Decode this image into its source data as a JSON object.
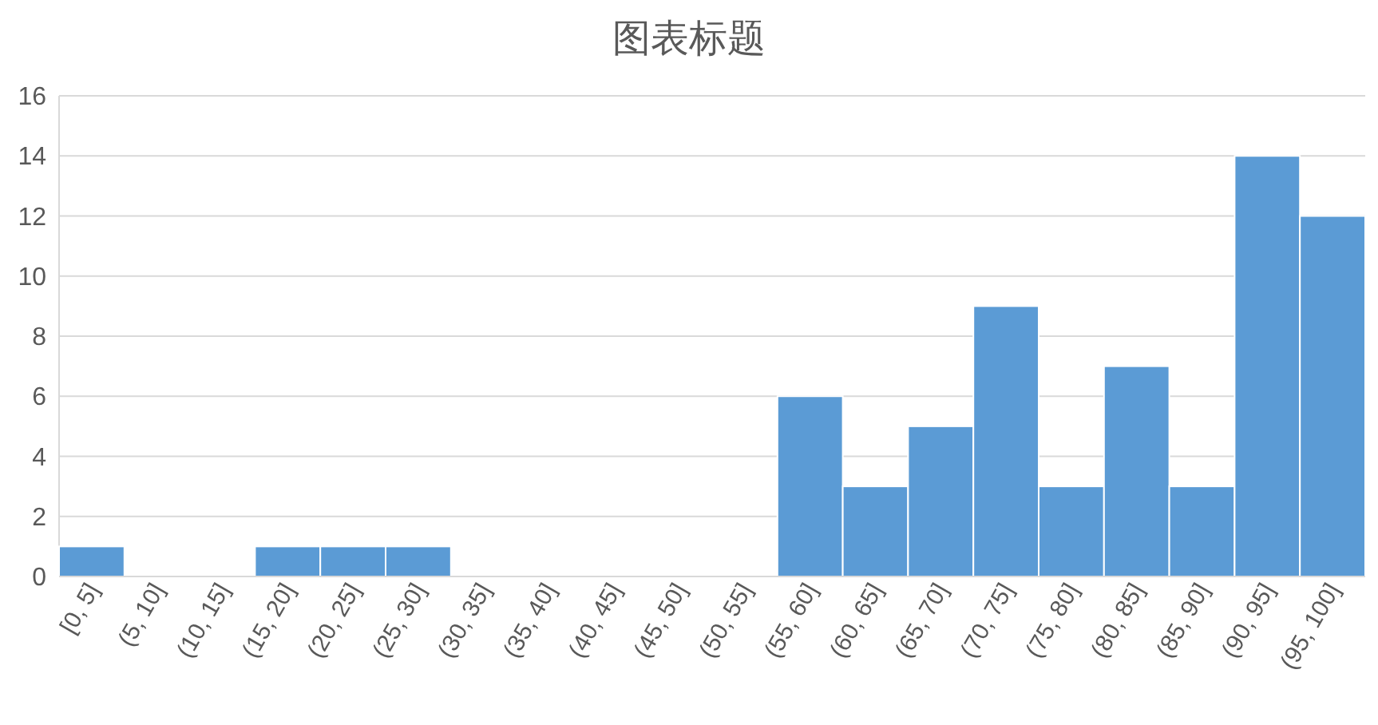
{
  "chart_data": {
    "type": "bar",
    "title": "图表标题",
    "categories": [
      "[0, 5]",
      "(5, 10]",
      "(10, 15]",
      "(15, 20]",
      "(20, 25]",
      "(25, 30]",
      "(30, 35]",
      "(35, 40]",
      "(40, 45]",
      "(45, 50]",
      "(50, 55]",
      "(55, 60]",
      "(60, 65]",
      "(65, 70]",
      "(70, 75]",
      "(75, 80]",
      "(80, 85]",
      "(85, 90]",
      "(90, 95]",
      "(95, 100]"
    ],
    "values": [
      1,
      0,
      0,
      1,
      1,
      1,
      0,
      0,
      0,
      0,
      0,
      6,
      3,
      5,
      9,
      3,
      7,
      3,
      14,
      12
    ],
    "color": "#5b9bd5",
    "ylim": [
      0,
      16
    ],
    "yticks": [
      0,
      2,
      4,
      6,
      8,
      10,
      12,
      14,
      16
    ],
    "grid": "y"
  }
}
